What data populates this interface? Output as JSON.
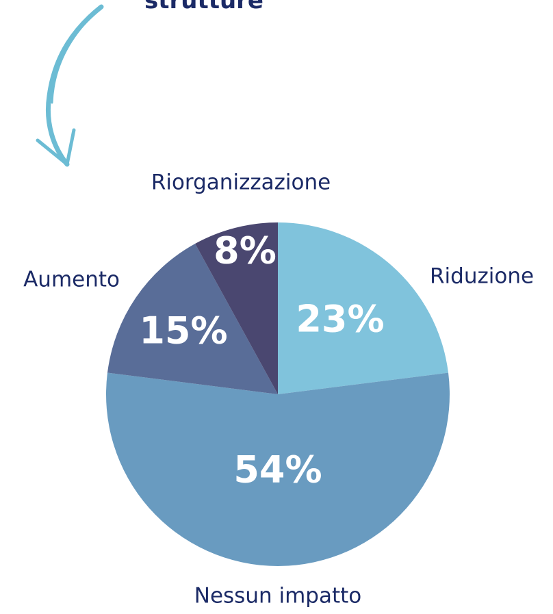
{
  "chart_data": {
    "type": "pie",
    "title": "strutture",
    "categories": [
      "Riduzione",
      "Nessun impatto",
      "Aumento",
      "Riorganizzazione"
    ],
    "values": [
      23,
      54,
      15,
      8
    ],
    "value_labels": [
      "23%",
      "54%",
      "15%",
      "8%"
    ],
    "colors": [
      "#80c3dc",
      "#699bc0",
      "#596d98",
      "#4a4770"
    ]
  }
}
